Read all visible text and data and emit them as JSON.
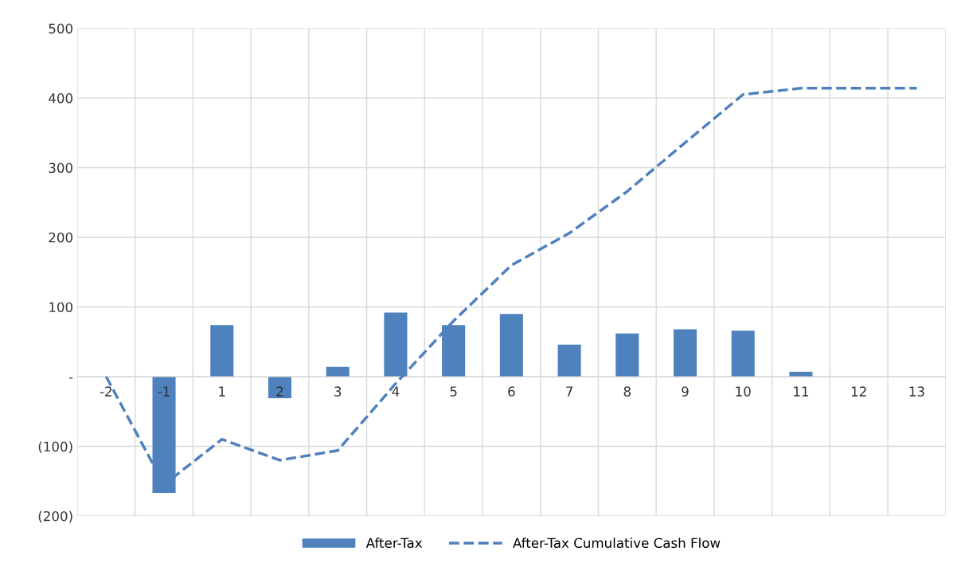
{
  "chart_data": {
    "type": "bar",
    "categories": [
      "-2",
      "-1",
      "1",
      "2",
      "3",
      "4",
      "5",
      "6",
      "7",
      "8",
      "9",
      "10",
      "11",
      "12",
      "13"
    ],
    "series": [
      {
        "name": "After-Tax",
        "color": "#4f81bd",
        "values": [
          0,
          -167,
          74,
          -31,
          14,
          92,
          74,
          90,
          46,
          62,
          68,
          66,
          7,
          0,
          0
        ]
      },
      {
        "name": "After-Tax Cumulative Cash Flow",
        "type": "line",
        "color": "#4f81bd",
        "line_style": "dashed",
        "values": [
          0,
          -155,
          -90,
          -120,
          -106,
          -10,
          80,
          160,
          206,
          266,
          336,
          405,
          414,
          414,
          414
        ]
      }
    ],
    "ylim": [
      -200,
      500
    ],
    "yticks": [
      {
        "value": -200,
        "label": "(200)"
      },
      {
        "value": -100,
        "label": "(100)"
      },
      {
        "value": 0,
        "label": "-"
      },
      100,
      200,
      300,
      400,
      500
    ],
    "grid": true,
    "legend": "bottom"
  }
}
